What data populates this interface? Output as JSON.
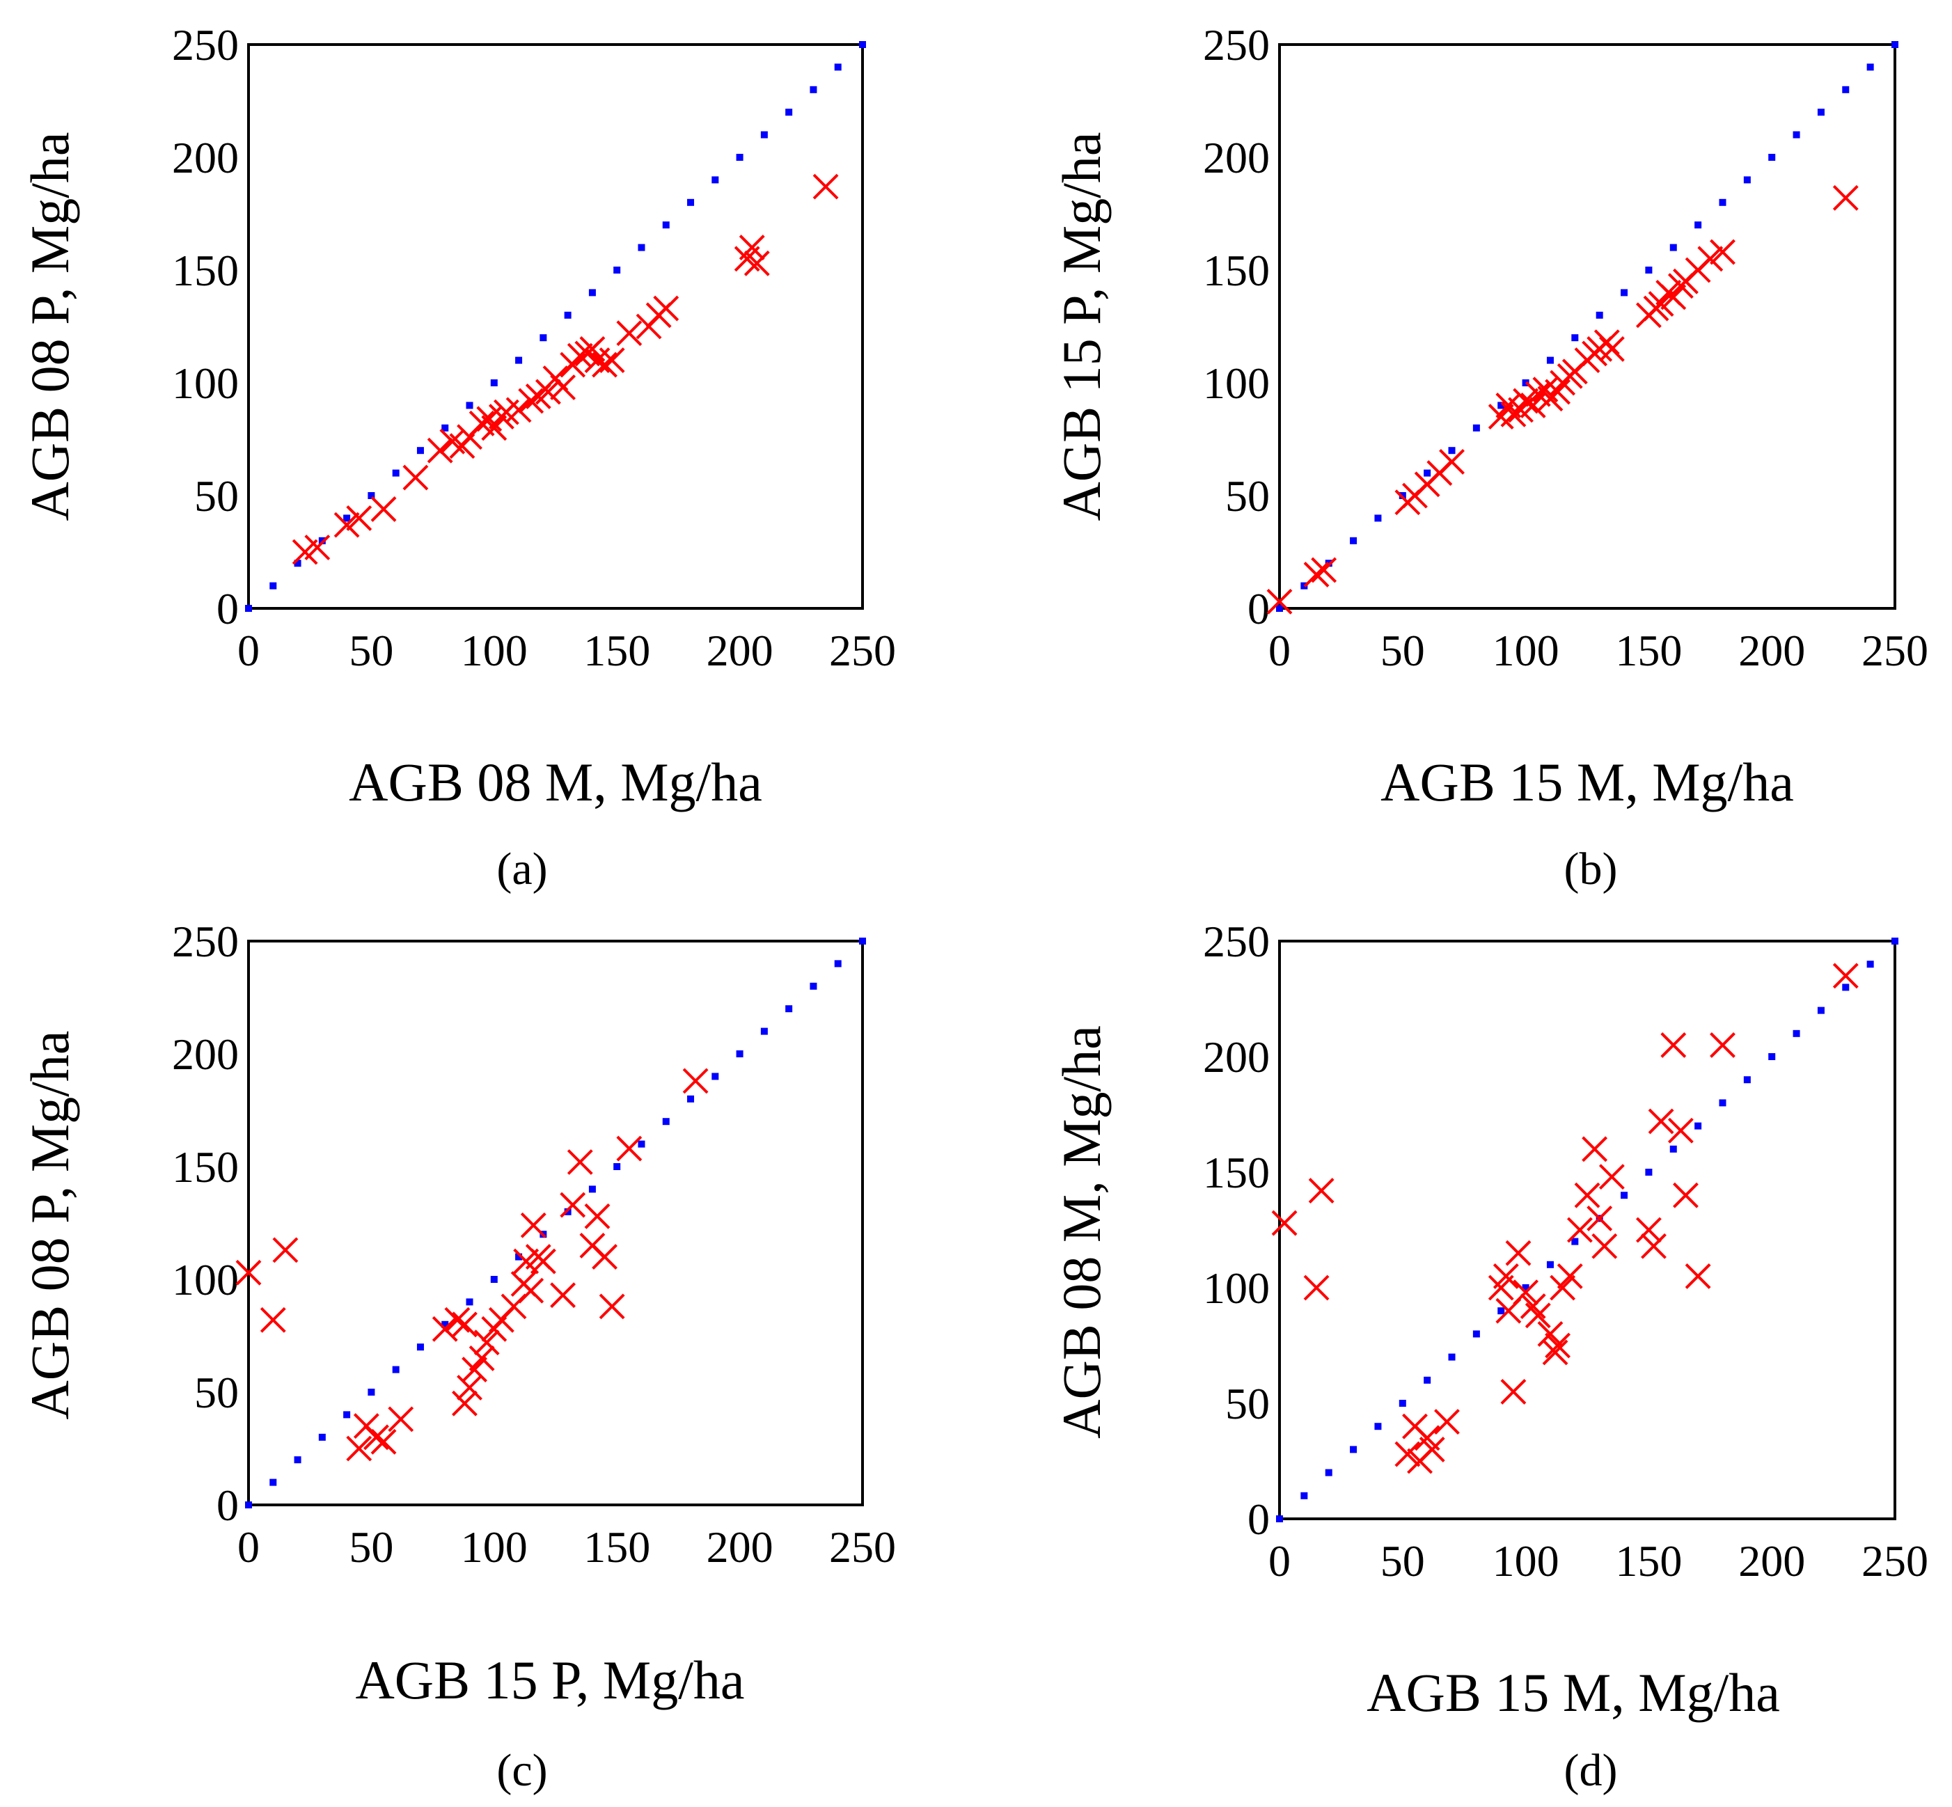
{
  "colors": {
    "identity": "#0000ff",
    "points": "#ff0000",
    "frame": "#000000"
  },
  "chart_data": [
    {
      "type": "scatter",
      "caption": "(a)",
      "xlabel": "AGB 08 M, Mg/ha",
      "ylabel": "AGB 08 P, Mg/ha",
      "xlim": [
        0,
        250
      ],
      "ylim": [
        0,
        250
      ],
      "ticks": [
        "0",
        "50",
        "100",
        "150",
        "200",
        "250"
      ],
      "identity_line": true,
      "points": [
        [
          23,
          25
        ],
        [
          28,
          27
        ],
        [
          40,
          37
        ],
        [
          45,
          40
        ],
        [
          55,
          44
        ],
        [
          68,
          58
        ],
        [
          78,
          70
        ],
        [
          83,
          74
        ],
        [
          87,
          72
        ],
        [
          90,
          76
        ],
        [
          95,
          82
        ],
        [
          98,
          84
        ],
        [
          100,
          80
        ],
        [
          103,
          85
        ],
        [
          105,
          87
        ],
        [
          110,
          88
        ],
        [
          115,
          92
        ],
        [
          118,
          94
        ],
        [
          122,
          96
        ],
        [
          125,
          102
        ],
        [
          128,
          98
        ],
        [
          132,
          108
        ],
        [
          135,
          112
        ],
        [
          138,
          113
        ],
        [
          140,
          115
        ],
        [
          142,
          110
        ],
        [
          145,
          108
        ],
        [
          148,
          110
        ],
        [
          155,
          122
        ],
        [
          163,
          125
        ],
        [
          167,
          130
        ],
        [
          170,
          133
        ],
        [
          203,
          155
        ],
        [
          205,
          160
        ],
        [
          207,
          153
        ],
        [
          235,
          187
        ]
      ]
    },
    {
      "type": "scatter",
      "caption": "(b)",
      "xlabel": "AGB 15  M, Mg/ha",
      "ylabel": "AGB 15 P, Mg/ha",
      "xlim": [
        0,
        250
      ],
      "ylim": [
        0,
        250
      ],
      "ticks": [
        "0",
        "50",
        "100",
        "150",
        "200",
        "250"
      ],
      "identity_line": true,
      "points": [
        [
          0,
          3
        ],
        [
          15,
          15
        ],
        [
          18,
          17
        ],
        [
          52,
          47
        ],
        [
          55,
          50
        ],
        [
          60,
          55
        ],
        [
          65,
          60
        ],
        [
          70,
          65
        ],
        [
          90,
          85
        ],
        [
          93,
          90
        ],
        [
          95,
          86
        ],
        [
          98,
          88
        ],
        [
          100,
          92
        ],
        [
          103,
          90
        ],
        [
          105,
          95
        ],
        [
          108,
          97
        ],
        [
          110,
          93
        ],
        [
          113,
          96
        ],
        [
          115,
          100
        ],
        [
          118,
          103
        ],
        [
          120,
          105
        ],
        [
          125,
          110
        ],
        [
          128,
          113
        ],
        [
          130,
          115
        ],
        [
          133,
          118
        ],
        [
          135,
          115
        ],
        [
          150,
          130
        ],
        [
          153,
          133
        ],
        [
          155,
          135
        ],
        [
          158,
          140
        ],
        [
          160,
          138
        ],
        [
          163,
          143
        ],
        [
          165,
          145
        ],
        [
          170,
          150
        ],
        [
          175,
          155
        ],
        [
          180,
          158
        ],
        [
          230,
          182
        ]
      ]
    },
    {
      "type": "scatter",
      "caption": "(c)",
      "xlabel": "AGB 15 P, Mg/ha",
      "ylabel": "AGB 08 P, Mg/ha",
      "xlim": [
        0,
        250
      ],
      "ylim": [
        0,
        250
      ],
      "ticks": [
        "0",
        "50",
        "100",
        "150",
        "200",
        "250"
      ],
      "identity_line": true,
      "points": [
        [
          0,
          103
        ],
        [
          10,
          82
        ],
        [
          15,
          113
        ],
        [
          45,
          25
        ],
        [
          48,
          35
        ],
        [
          52,
          30
        ],
        [
          55,
          28
        ],
        [
          62,
          38
        ],
        [
          80,
          78
        ],
        [
          85,
          82
        ],
        [
          88,
          80
        ],
        [
          88,
          45
        ],
        [
          90,
          52
        ],
        [
          92,
          60
        ],
        [
          95,
          65
        ],
        [
          97,
          72
        ],
        [
          100,
          78
        ],
        [
          103,
          82
        ],
        [
          108,
          88
        ],
        [
          112,
          98
        ],
        [
          113,
          108
        ],
        [
          115,
          95
        ],
        [
          116,
          124
        ],
        [
          118,
          110
        ],
        [
          120,
          108
        ],
        [
          128,
          93
        ],
        [
          132,
          133
        ],
        [
          135,
          152
        ],
        [
          140,
          115
        ],
        [
          142,
          128
        ],
        [
          145,
          110
        ],
        [
          148,
          88
        ],
        [
          155,
          158
        ],
        [
          182,
          188
        ]
      ]
    },
    {
      "type": "scatter",
      "caption": "(d)",
      "xlabel": "AGB 15 M, Mg/ha",
      "ylabel": "AGB 08 M, Mg/ha",
      "xlim": [
        0,
        250
      ],
      "ylim": [
        0,
        250
      ],
      "ticks": [
        "0",
        "50",
        "100",
        "150",
        "200",
        "250"
      ],
      "identity_line": true,
      "points": [
        [
          2,
          128
        ],
        [
          15,
          100
        ],
        [
          17,
          142
        ],
        [
          52,
          28
        ],
        [
          55,
          40
        ],
        [
          57,
          25
        ],
        [
          60,
          35
        ],
        [
          62,
          30
        ],
        [
          68,
          42
        ],
        [
          90,
          100
        ],
        [
          92,
          105
        ],
        [
          93,
          90
        ],
        [
          95,
          55
        ],
        [
          97,
          115
        ],
        [
          100,
          98
        ],
        [
          103,
          92
        ],
        [
          105,
          88
        ],
        [
          110,
          80
        ],
        [
          112,
          72
        ],
        [
          113,
          75
        ],
        [
          115,
          100
        ],
        [
          118,
          105
        ],
        [
          122,
          125
        ],
        [
          125,
          140
        ],
        [
          128,
          160
        ],
        [
          130,
          130
        ],
        [
          132,
          118
        ],
        [
          135,
          148
        ],
        [
          150,
          125
        ],
        [
          152,
          118
        ],
        [
          155,
          172
        ],
        [
          160,
          205
        ],
        [
          163,
          168
        ],
        [
          165,
          140
        ],
        [
          170,
          105
        ],
        [
          180,
          205
        ],
        [
          230,
          235
        ]
      ]
    }
  ]
}
